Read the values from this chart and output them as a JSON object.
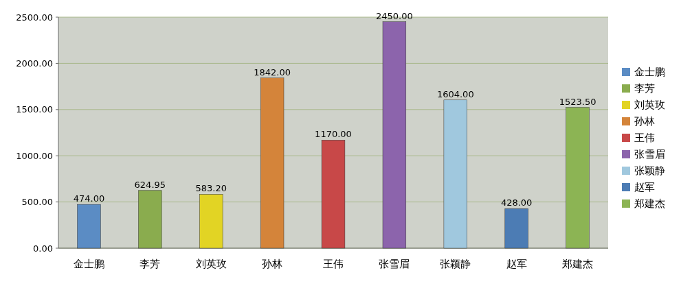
{
  "chart_data": {
    "type": "bar",
    "categories": [
      "金士鹏",
      "李芳",
      "刘英玫",
      "孙林",
      "王伟",
      "张雪眉",
      "张颖静",
      "赵军",
      "郑建杰"
    ],
    "series": [
      {
        "name": "金士鹏",
        "color": "#5b8cc4",
        "values": [
          474,
          null,
          null,
          null,
          null,
          null,
          null,
          null,
          null
        ],
        "value_labels": [
          "474.00",
          null,
          null,
          null,
          null,
          null,
          null,
          null,
          null
        ]
      },
      {
        "name": "李芳",
        "color": "#8aac4e",
        "values": [
          null,
          624.95,
          null,
          null,
          null,
          null,
          null,
          null,
          null
        ],
        "value_labels": [
          null,
          "624.95",
          null,
          null,
          null,
          null,
          null,
          null,
          null
        ]
      },
      {
        "name": "刘英玫",
        "color": "#e2d424",
        "values": [
          null,
          null,
          583.2,
          null,
          null,
          null,
          null,
          null,
          null
        ],
        "value_labels": [
          null,
          null,
          "583.20",
          null,
          null,
          null,
          null,
          null,
          null
        ]
      },
      {
        "name": "孙林",
        "color": "#d4843a",
        "values": [
          null,
          null,
          null,
          1842,
          null,
          null,
          null,
          null,
          null
        ],
        "value_labels": [
          null,
          null,
          null,
          "1842.00",
          null,
          null,
          null,
          null,
          null
        ]
      },
      {
        "name": "王伟",
        "color": "#c84848",
        "values": [
          null,
          null,
          null,
          null,
          1170,
          null,
          null,
          null,
          null
        ],
        "value_labels": [
          null,
          null,
          null,
          null,
          "1170.00",
          null,
          null,
          null,
          null
        ]
      },
      {
        "name": "张雪眉",
        "color": "#8c64ac",
        "values": [
          null,
          null,
          null,
          null,
          null,
          2450,
          null,
          null,
          null
        ],
        "value_labels": [
          null,
          null,
          null,
          null,
          null,
          "2450.00",
          null,
          null,
          null
        ]
      },
      {
        "name": "张颖静",
        "color": "#a0c8de",
        "values": [
          null,
          null,
          null,
          null,
          null,
          null,
          1604,
          null,
          null
        ],
        "value_labels": [
          null,
          null,
          null,
          null,
          null,
          null,
          "1604.00",
          null,
          null
        ]
      },
      {
        "name": "赵军",
        "color": "#4c7cb4",
        "values": [
          null,
          null,
          null,
          null,
          null,
          null,
          null,
          428,
          null
        ],
        "value_labels": [
          null,
          null,
          null,
          null,
          null,
          null,
          null,
          "428.00",
          null
        ]
      },
      {
        "name": "郑建杰",
        "color": "#8cb454",
        "values": [
          null,
          null,
          null,
          null,
          null,
          null,
          null,
          null,
          1523.5
        ],
        "value_labels": [
          null,
          null,
          null,
          null,
          null,
          null,
          null,
          null,
          "1523.50"
        ]
      }
    ],
    "ylim": [
      0,
      2500
    ],
    "yticks": [
      {
        "value": 0,
        "label": "0.00"
      },
      {
        "value": 500,
        "label": "500.00"
      },
      {
        "value": 1000,
        "label": "1000.00"
      },
      {
        "value": 1500,
        "label": "1500.00"
      },
      {
        "value": 2000,
        "label": "2000.00"
      },
      {
        "value": 2500,
        "label": "2500.00"
      }
    ],
    "grid": true,
    "legend": "right"
  }
}
